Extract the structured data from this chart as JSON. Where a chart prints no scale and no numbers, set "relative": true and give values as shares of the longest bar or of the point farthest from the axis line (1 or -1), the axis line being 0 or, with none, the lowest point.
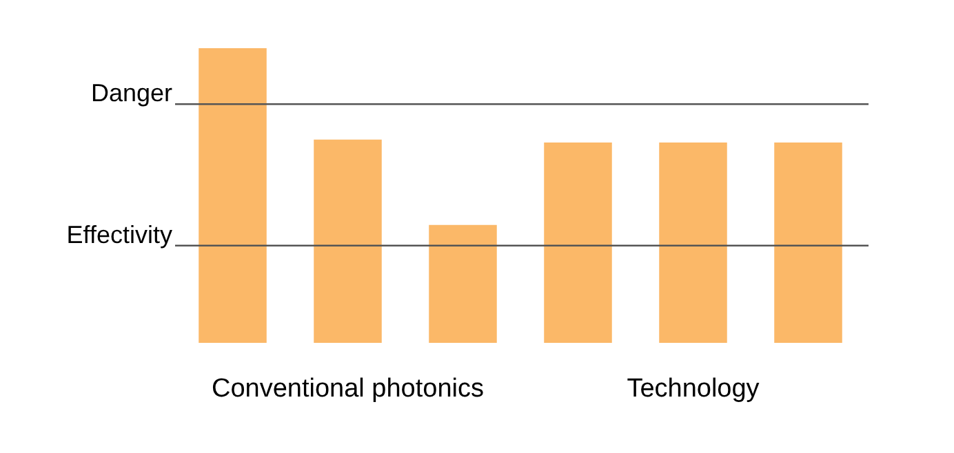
{
  "chart_data": {
    "type": "bar",
    "relative": true,
    "categories": [
      null,
      null,
      null,
      null,
      null,
      null
    ],
    "values": [
      1,
      0.69,
      0.4,
      0.68,
      0.68,
      0.68
    ],
    "color": "#fbb868",
    "ref_lines": [
      {
        "axis": "y",
        "value": 0.81,
        "label": "Danger",
        "color": "#555555"
      },
      {
        "axis": "y",
        "value": 0.33,
        "label": "Effectivity",
        "color": "#555555"
      }
    ],
    "annotations": [
      "Conventional photonics",
      "Technology"
    ],
    "legend": false
  }
}
